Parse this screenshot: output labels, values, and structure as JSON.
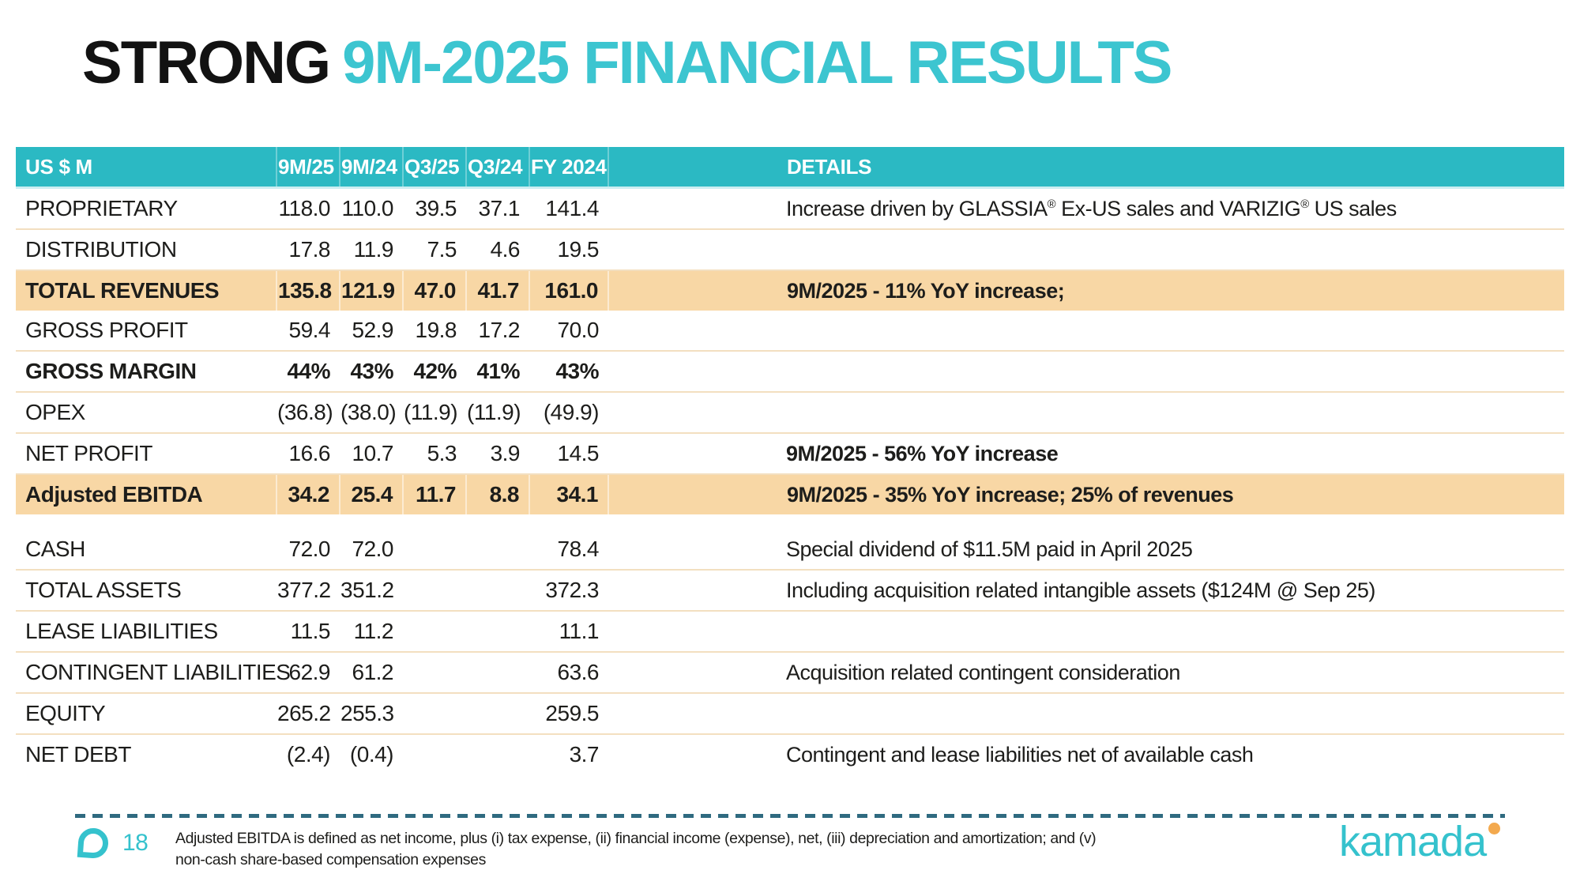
{
  "slide": {
    "title_black": "STRONG",
    "title_teal": "9M-2025 FINANCIAL RESULTS"
  },
  "table": {
    "headers": [
      "US $ M",
      "9M/25",
      "9M/24",
      "Q3/25",
      "Q3/24",
      "FY 2024",
      "DETAILS"
    ],
    "sections": [
      {
        "rows": [
          {
            "label": "PROPRIETARY",
            "values": [
              "118.0",
              "110.0",
              "39.5",
              "37.1",
              "141.4"
            ],
            "details": "Increase driven by GLASSIA® Ex-US sales and VARIZIG® US sales",
            "highlight": false,
            "bold": false,
            "details_bold": false
          },
          {
            "label": "DISTRIBUTION",
            "values": [
              "17.8",
              "11.9",
              "7.5",
              "4.6",
              "19.5"
            ],
            "details": "",
            "highlight": false,
            "bold": false,
            "details_bold": false
          },
          {
            "label": "TOTAL REVENUES",
            "values": [
              "135.8",
              "121.9",
              "47.0",
              "41.7",
              "161.0"
            ],
            "details": "9M/2025 - 11% YoY increase;",
            "highlight": true,
            "bold": true,
            "details_bold": true
          },
          {
            "label": "GROSS PROFIT",
            "values": [
              "59.4",
              "52.9",
              "19.8",
              "17.2",
              "70.0"
            ],
            "details": "",
            "highlight": false,
            "bold": false,
            "details_bold": false
          },
          {
            "label": "GROSS MARGIN",
            "values": [
              "44%",
              "43%",
              "42%",
              "41%",
              "43%"
            ],
            "details": "",
            "highlight": false,
            "bold": true,
            "details_bold": false
          },
          {
            "label": "OPEX",
            "values": [
              "(36.8)",
              "(38.0)",
              "(11.9)",
              "(11.9)",
              "(49.9)"
            ],
            "details": "",
            "highlight": false,
            "bold": false,
            "details_bold": false
          },
          {
            "label": "NET PROFIT",
            "values": [
              "16.6",
              "10.7",
              "5.3",
              "3.9",
              "14.5"
            ],
            "details": "9M/2025 - 56% YoY increase",
            "highlight": false,
            "bold": false,
            "details_bold": true
          },
          {
            "label": "Adjusted EBITDA",
            "values": [
              "34.2",
              "25.4",
              "11.7",
              "8.8",
              "34.1"
            ],
            "details": "9M/2025 - 35% YoY increase; 25% of revenues",
            "highlight": true,
            "bold": true,
            "details_bold": true
          }
        ]
      },
      {
        "rows": [
          {
            "label": "CASH",
            "values": [
              "72.0",
              "72.0",
              "",
              "",
              "78.4"
            ],
            "details": "Special dividend of $11.5M paid in April 2025",
            "highlight": false,
            "bold": false,
            "details_bold": false
          },
          {
            "label": "TOTAL ASSETS",
            "values": [
              "377.2",
              "351.2",
              "",
              "",
              "372.3"
            ],
            "details": "Including acquisition related intangible assets ($124M @ Sep 25)",
            "highlight": false,
            "bold": false,
            "details_bold": false
          },
          {
            "label": "LEASE LIABILITIES",
            "values": [
              "11.5",
              "11.2",
              "",
              "",
              "11.1"
            ],
            "details": "",
            "highlight": false,
            "bold": false,
            "details_bold": false
          },
          {
            "label": "CONTINGENT LIABILITIES",
            "values": [
              "62.9",
              "61.2",
              "",
              "",
              "63.6"
            ],
            "details": "Acquisition related contingent consideration",
            "highlight": false,
            "bold": false,
            "details_bold": false
          },
          {
            "label": "EQUITY",
            "values": [
              "265.2",
              "255.3",
              "",
              "",
              "259.5"
            ],
            "details": "",
            "highlight": false,
            "bold": false,
            "details_bold": false
          },
          {
            "label": "NET DEBT",
            "values": [
              "(2.4)",
              "(0.4)",
              "",
              "",
              "3.7"
            ],
            "details": "Contingent and lease liabilities net of available cash",
            "highlight": false,
            "bold": false,
            "details_bold": false
          }
        ]
      }
    ]
  },
  "footer": {
    "page_number": "18",
    "note_lines": [
      "Adjusted EBITDA is defined as net income, plus (i) tax expense, (ii) financial income (expense), net, (iii) depreciation and amortization; and (v)",
      "non-cash share-based compensation expenses"
    ],
    "logo_text": "kamada"
  },
  "colors": {
    "teal_band": "#2bb9c3",
    "teal_title": "#3cc5d0",
    "teal_accent": "#35c2cd",
    "highlight": "#f8d7a5",
    "separator": "#f3dfc0",
    "header_rule": "#cdeef2",
    "dash": "#2f6a80",
    "orange_dot": "#f3a94e"
  }
}
